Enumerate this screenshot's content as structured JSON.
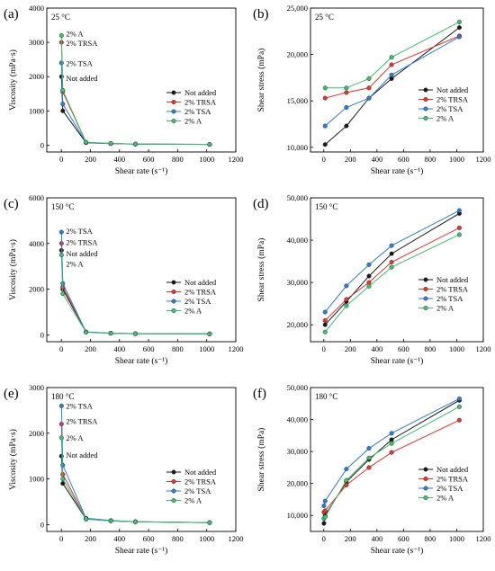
{
  "colors": {
    "Not added": "#1a1a1a",
    "2% TRSA": "#e8322a",
    "2% TSA": "#2e7dd8",
    "2% A": "#3fbf6f"
  },
  "chart_data": [
    {
      "panel": "(a)",
      "temperature": "25 °C",
      "type": "line",
      "xlabel": "Shear rate (s⁻¹)",
      "ylabel": "Viscosity (mPa·s)",
      "xlim": [
        -100,
        1200
      ],
      "ylim": [
        -200,
        4000
      ],
      "xticks": [
        0,
        200,
        400,
        600,
        800,
        1000,
        1200
      ],
      "yticks": [
        0,
        1000,
        2000,
        3000,
        4000
      ],
      "legend_position": "right-center",
      "annotations": [
        {
          "text": "2% A",
          "x": 20,
          "y": 3250
        },
        {
          "text": "2% TRSA",
          "x": 20,
          "y": 2980
        },
        {
          "text": "2% TSA",
          "x": 20,
          "y": 2380
        },
        {
          "text": "Not added",
          "x": 20,
          "y": 1950
        }
      ],
      "series": [
        {
          "name": "Not added",
          "x": [
            1,
            10,
            170,
            340,
            510,
            1020
          ],
          "y": [
            2000,
            1000,
            70,
            45,
            30,
            20
          ]
        },
        {
          "name": "2% TRSA",
          "x": [
            1,
            10,
            170,
            340,
            510,
            1020
          ],
          "y": [
            3000,
            1550,
            80,
            48,
            32,
            22
          ]
        },
        {
          "name": "2% TSA",
          "x": [
            1,
            10,
            170,
            340,
            510,
            1020
          ],
          "y": [
            2400,
            1200,
            75,
            46,
            30,
            21
          ]
        },
        {
          "name": "2% A",
          "x": [
            1,
            10,
            170,
            340,
            510,
            1020
          ],
          "y": [
            3200,
            1600,
            85,
            50,
            33,
            23
          ]
        }
      ]
    },
    {
      "panel": "(b)",
      "temperature": "25 °C",
      "type": "line",
      "xlabel": "Shear rate (s⁻¹)",
      "ylabel": "Shear stress (mPa)",
      "xlim": [
        -100,
        1200
      ],
      "ylim": [
        9500,
        25000
      ],
      "xticks": [
        0,
        200,
        400,
        600,
        800,
        1000,
        1200
      ],
      "yticks": [
        10000,
        15000,
        20000,
        25000
      ],
      "ytick_labels": [
        "10,000",
        "15,000",
        "20,000",
        "25,000"
      ],
      "legend_position": "bottom-right",
      "annotations": [],
      "series": [
        {
          "name": "Not added",
          "x": [
            10,
            170,
            340,
            510,
            1020
          ],
          "y": [
            10300,
            12300,
            15300,
            17400,
            22900
          ]
        },
        {
          "name": "2% TRSA",
          "x": [
            10,
            170,
            340,
            510,
            1020
          ],
          "y": [
            15300,
            15900,
            16400,
            18900,
            22000
          ]
        },
        {
          "name": "2% TSA",
          "x": [
            10,
            170,
            340,
            510,
            1020
          ],
          "y": [
            12300,
            14300,
            15300,
            17800,
            21900
          ]
        },
        {
          "name": "2% A",
          "x": [
            10,
            170,
            340,
            510,
            1020
          ],
          "y": [
            16400,
            16400,
            17400,
            19700,
            23500
          ]
        }
      ]
    },
    {
      "panel": "(c)",
      "temperature": "150 °C",
      "type": "line",
      "xlabel": "Shear rate (s⁻¹)",
      "ylabel": "Viscosity (mPa·s)",
      "xlim": [
        -100,
        1200
      ],
      "ylim": [
        -300,
        6000
      ],
      "xticks": [
        0,
        200,
        400,
        600,
        800,
        1000,
        1200
      ],
      "yticks": [
        0,
        2000,
        4000,
        6000
      ],
      "legend_position": "right-center",
      "annotations": [
        {
          "text": "2% TSA",
          "x": 20,
          "y": 4550
        },
        {
          "text": "2% TRSA",
          "x": 20,
          "y": 4050
        },
        {
          "text": "Not added",
          "x": 20,
          "y": 3550
        },
        {
          "text": "2% A",
          "x": 20,
          "y": 3100
        }
      ],
      "series": [
        {
          "name": "Not added",
          "x": [
            1,
            10,
            170,
            340,
            510,
            1020
          ],
          "y": [
            3700,
            2000,
            120,
            70,
            50,
            40
          ]
        },
        {
          "name": "2% TRSA",
          "x": [
            1,
            10,
            170,
            340,
            510,
            1020
          ],
          "y": [
            4000,
            2100,
            125,
            72,
            52,
            42
          ]
        },
        {
          "name": "2% TSA",
          "x": [
            1,
            10,
            170,
            340,
            510,
            1020
          ],
          "y": [
            4500,
            2250,
            130,
            75,
            55,
            43
          ]
        },
        {
          "name": "2% A",
          "x": [
            1,
            10,
            170,
            340,
            510,
            1020
          ],
          "y": [
            3500,
            1800,
            115,
            68,
            48,
            38
          ]
        }
      ]
    },
    {
      "panel": "(d)",
      "temperature": "150 °C",
      "type": "line",
      "xlabel": "Shear rate (s⁻¹)",
      "ylabel": "Shear stress (mPa)",
      "xlim": [
        -100,
        1200
      ],
      "ylim": [
        16000,
        50000
      ],
      "xticks": [
        0,
        200,
        400,
        600,
        800,
        1000,
        1200
      ],
      "yticks": [
        20000,
        30000,
        40000,
        50000
      ],
      "ytick_labels": [
        "20,000",
        "30,000",
        "40,000",
        "50,000"
      ],
      "legend_position": "bottom-right",
      "annotations": [],
      "series": [
        {
          "name": "Not added",
          "x": [
            10,
            170,
            340,
            510,
            1020
          ],
          "y": [
            20000,
            25500,
            31500,
            36800,
            46300
          ]
        },
        {
          "name": "2% TRSA",
          "x": [
            10,
            170,
            340,
            510,
            1020
          ],
          "y": [
            21000,
            26000,
            30000,
            34800,
            42900
          ]
        },
        {
          "name": "2% TSA",
          "x": [
            10,
            170,
            340,
            510,
            1020
          ],
          "y": [
            23000,
            29200,
            34200,
            38700,
            47000
          ]
        },
        {
          "name": "2% A",
          "x": [
            10,
            170,
            340,
            510,
            1020
          ],
          "y": [
            18300,
            24500,
            29100,
            33600,
            41300
          ]
        }
      ]
    },
    {
      "panel": "(e)",
      "temperature": "180 °C",
      "type": "line",
      "xlabel": "Shear rate (s⁻¹)",
      "ylabel": "Viscosity (mPa·s)",
      "xlim": [
        -100,
        1200
      ],
      "ylim": [
        -150,
        3000
      ],
      "xticks": [
        0,
        200,
        400,
        600,
        800,
        1000,
        1200
      ],
      "yticks": [
        0,
        1000,
        2000,
        3000
      ],
      "legend_position": "right-center",
      "annotations": [
        {
          "text": "2% TSA",
          "x": 20,
          "y": 2600
        },
        {
          "text": "2% TRSA",
          "x": 20,
          "y": 2260
        },
        {
          "text": "2% A",
          "x": 20,
          "y": 1900
        },
        {
          "text": "Not added",
          "x": 20,
          "y": 1520
        }
      ],
      "series": [
        {
          "name": "Not added",
          "x": [
            1,
            10,
            170,
            340,
            510,
            1020
          ],
          "y": [
            1500,
            900,
            120,
            80,
            60,
            40
          ]
        },
        {
          "name": "2% TRSA",
          "x": [
            1,
            10,
            170,
            340,
            510,
            1020
          ],
          "y": [
            2200,
            1100,
            130,
            85,
            62,
            42
          ]
        },
        {
          "name": "2% TSA",
          "x": [
            1,
            10,
            170,
            340,
            510,
            1020
          ],
          "y": [
            2600,
            1300,
            140,
            90,
            65,
            45
          ]
        },
        {
          "name": "2% A",
          "x": [
            1,
            10,
            170,
            340,
            510,
            1020
          ],
          "y": [
            1900,
            1000,
            125,
            82,
            60,
            41
          ]
        }
      ]
    },
    {
      "panel": "(f)",
      "temperature": "180 °C",
      "type": "line",
      "xlabel": "Shear rate (s⁻¹)",
      "ylabel": "Shear stress (mPa)",
      "xlim": [
        -100,
        1200
      ],
      "ylim": [
        5000,
        50000
      ],
      "xticks": [
        0,
        200,
        400,
        600,
        800,
        1000,
        1200
      ],
      "yticks": [
        10000,
        20000,
        30000,
        40000,
        50000
      ],
      "ytick_labels": [
        "10,000",
        "20,000",
        "30,000",
        "40,000",
        "50,000"
      ],
      "legend_position": "bottom-right",
      "annotations": [],
      "series": [
        {
          "name": "Not added",
          "x": [
            1,
            10,
            170,
            340,
            510,
            1020
          ],
          "y": [
            7500,
            10000,
            20500,
            27500,
            33700,
            46000
          ]
        },
        {
          "name": "2% TRSA",
          "x": [
            1,
            10,
            170,
            340,
            510,
            1020
          ],
          "y": [
            11000,
            11500,
            19500,
            25000,
            29700,
            39800
          ]
        },
        {
          "name": "2% TSA",
          "x": [
            1,
            10,
            170,
            340,
            510,
            1020
          ],
          "y": [
            13000,
            14500,
            24500,
            31000,
            35700,
            46500
          ]
        },
        {
          "name": "2% A",
          "x": [
            1,
            10,
            170,
            340,
            510,
            1020
          ],
          "y": [
            9000,
            9500,
            21000,
            28000,
            32500,
            44000
          ]
        }
      ]
    }
  ]
}
